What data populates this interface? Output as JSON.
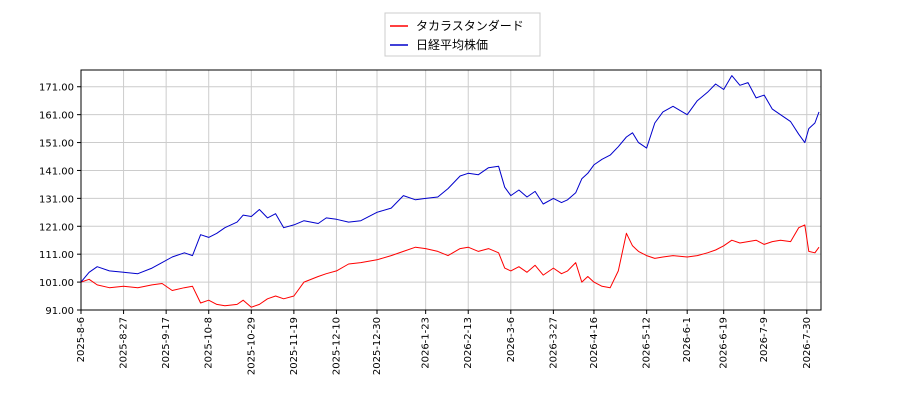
{
  "chart_data": {
    "type": "line",
    "title": "",
    "xlabel": "",
    "ylabel": "",
    "ylim": [
      91.0,
      177.0
    ],
    "yticks": [
      "91.00",
      "101.00",
      "111.00",
      "121.00",
      "131.00",
      "141.00",
      "151.00",
      "161.00",
      "171.00"
    ],
    "x_range": [
      "2025-08-06",
      "2026-08-06"
    ],
    "xticks": [
      "2025-8-6",
      "2025-8-27",
      "2025-9-17",
      "2025-10-8",
      "2025-10-29",
      "2025-11-19",
      "2025-12-10",
      "2025-12-30",
      "2026-1-23",
      "2026-2-13",
      "2026-3-6",
      "2026-3-27",
      "2026-4-16",
      "2026-5-12",
      "2026-6-1",
      "2026-6-19",
      "2026-7-9",
      "2026-7-30"
    ],
    "grid": true,
    "legend": "top-center",
    "series": [
      {
        "name": "タカラスタンダード",
        "color": "#ff0000",
        "points": [
          [
            "2025-08-06",
            101.0
          ],
          [
            "2025-08-10",
            102.0
          ],
          [
            "2025-08-14",
            100.0
          ],
          [
            "2025-08-20",
            99.0
          ],
          [
            "2025-08-27",
            99.5
          ],
          [
            "2025-09-03",
            99.0
          ],
          [
            "2025-09-10",
            100.0
          ],
          [
            "2025-09-15",
            100.5
          ],
          [
            "2025-09-20",
            98.0
          ],
          [
            "2025-09-26",
            99.0
          ],
          [
            "2025-09-30",
            99.5
          ],
          [
            "2025-10-04",
            93.5
          ],
          [
            "2025-10-08",
            94.5
          ],
          [
            "2025-10-12",
            93.0
          ],
          [
            "2025-10-16",
            92.5
          ],
          [
            "2025-10-22",
            93.0
          ],
          [
            "2025-10-25",
            94.5
          ],
          [
            "2025-10-29",
            92.0
          ],
          [
            "2025-11-02",
            93.0
          ],
          [
            "2025-11-06",
            95.0
          ],
          [
            "2025-11-10",
            96.0
          ],
          [
            "2025-11-14",
            95.0
          ],
          [
            "2025-11-19",
            96.0
          ],
          [
            "2025-11-24",
            101.0
          ],
          [
            "2025-12-01",
            103.0
          ],
          [
            "2025-12-05",
            104.0
          ],
          [
            "2025-12-10",
            105.0
          ],
          [
            "2025-12-16",
            107.5
          ],
          [
            "2025-12-22",
            108.0
          ],
          [
            "2025-12-30",
            109.0
          ],
          [
            "2026-01-06",
            110.5
          ],
          [
            "2026-01-12",
            112.0
          ],
          [
            "2026-01-18",
            113.5
          ],
          [
            "2026-01-23",
            113.0
          ],
          [
            "2026-01-29",
            112.0
          ],
          [
            "2026-02-03",
            110.5
          ],
          [
            "2026-02-09",
            113.0
          ],
          [
            "2026-02-13",
            113.5
          ],
          [
            "2026-02-18",
            112.0
          ],
          [
            "2026-02-23",
            113.0
          ],
          [
            "2026-02-28",
            111.5
          ],
          [
            "2026-03-03",
            106.0
          ],
          [
            "2026-03-06",
            105.0
          ],
          [
            "2026-03-10",
            106.5
          ],
          [
            "2026-03-14",
            104.5
          ],
          [
            "2026-03-18",
            107.0
          ],
          [
            "2026-03-22",
            103.5
          ],
          [
            "2026-03-27",
            106.0
          ],
          [
            "2026-03-31",
            104.0
          ],
          [
            "2026-04-03",
            105.0
          ],
          [
            "2026-04-07",
            108.0
          ],
          [
            "2026-04-10",
            101.0
          ],
          [
            "2026-04-13",
            103.0
          ],
          [
            "2026-04-16",
            101.0
          ],
          [
            "2026-04-20",
            99.5
          ],
          [
            "2026-04-24",
            99.0
          ],
          [
            "2026-04-28",
            105.0
          ],
          [
            "2026-05-02",
            118.5
          ],
          [
            "2026-05-05",
            114.0
          ],
          [
            "2026-05-08",
            112.0
          ],
          [
            "2026-05-12",
            110.5
          ],
          [
            "2026-05-16",
            109.5
          ],
          [
            "2026-05-20",
            110.0
          ],
          [
            "2026-05-25",
            110.5
          ],
          [
            "2026-06-01",
            110.0
          ],
          [
            "2026-06-06",
            110.5
          ],
          [
            "2026-06-11",
            111.5
          ],
          [
            "2026-06-15",
            112.5
          ],
          [
            "2026-06-19",
            114.0
          ],
          [
            "2026-06-23",
            116.0
          ],
          [
            "2026-06-27",
            115.0
          ],
          [
            "2026-07-01",
            115.5
          ],
          [
            "2026-07-05",
            116.0
          ],
          [
            "2026-07-09",
            114.5
          ],
          [
            "2026-07-13",
            115.5
          ],
          [
            "2026-07-17",
            116.0
          ],
          [
            "2026-07-22",
            115.5
          ],
          [
            "2026-07-26",
            120.5
          ],
          [
            "2026-07-29",
            121.5
          ],
          [
            "2026-07-31",
            112.0
          ],
          [
            "2026-08-03",
            111.5
          ],
          [
            "2026-08-05",
            113.5
          ]
        ]
      },
      {
        "name": "日経平均株価",
        "color": "#0000cc",
        "points": [
          [
            "2025-08-06",
            101.0
          ],
          [
            "2025-08-10",
            104.5
          ],
          [
            "2025-08-14",
            106.5
          ],
          [
            "2025-08-20",
            105.0
          ],
          [
            "2025-08-27",
            104.5
          ],
          [
            "2025-09-03",
            104.0
          ],
          [
            "2025-09-10",
            106.0
          ],
          [
            "2025-09-15",
            108.0
          ],
          [
            "2025-09-20",
            110.0
          ],
          [
            "2025-09-26",
            111.5
          ],
          [
            "2025-09-30",
            110.5
          ],
          [
            "2025-10-04",
            118.0
          ],
          [
            "2025-10-08",
            117.0
          ],
          [
            "2025-10-12",
            118.5
          ],
          [
            "2025-10-16",
            120.5
          ],
          [
            "2025-10-22",
            122.5
          ],
          [
            "2025-10-25",
            125.0
          ],
          [
            "2025-10-29",
            124.5
          ],
          [
            "2025-11-02",
            127.0
          ],
          [
            "2025-11-06",
            124.0
          ],
          [
            "2025-11-10",
            125.5
          ],
          [
            "2025-11-14",
            120.5
          ],
          [
            "2025-11-19",
            121.5
          ],
          [
            "2025-11-24",
            123.0
          ],
          [
            "2025-12-01",
            122.0
          ],
          [
            "2025-12-05",
            124.0
          ],
          [
            "2025-12-10",
            123.5
          ],
          [
            "2025-12-16",
            122.5
          ],
          [
            "2025-12-22",
            123.0
          ],
          [
            "2025-12-30",
            126.0
          ],
          [
            "2026-01-06",
            127.5
          ],
          [
            "2026-01-12",
            132.0
          ],
          [
            "2026-01-18",
            130.5
          ],
          [
            "2026-01-23",
            131.0
          ],
          [
            "2026-01-29",
            131.5
          ],
          [
            "2026-02-03",
            134.5
          ],
          [
            "2026-02-09",
            139.0
          ],
          [
            "2026-02-13",
            140.0
          ],
          [
            "2026-02-18",
            139.5
          ],
          [
            "2026-02-23",
            142.0
          ],
          [
            "2026-02-28",
            142.5
          ],
          [
            "2026-03-03",
            135.0
          ],
          [
            "2026-03-06",
            132.0
          ],
          [
            "2026-03-10",
            134.0
          ],
          [
            "2026-03-14",
            131.5
          ],
          [
            "2026-03-18",
            133.5
          ],
          [
            "2026-03-22",
            129.0
          ],
          [
            "2026-03-27",
            131.0
          ],
          [
            "2026-03-31",
            129.5
          ],
          [
            "2026-04-03",
            130.5
          ],
          [
            "2026-04-07",
            133.0
          ],
          [
            "2026-04-10",
            138.0
          ],
          [
            "2026-04-13",
            140.0
          ],
          [
            "2026-04-16",
            143.0
          ],
          [
            "2026-04-20",
            145.0
          ],
          [
            "2026-04-24",
            146.5
          ],
          [
            "2026-04-28",
            149.5
          ],
          [
            "2026-05-02",
            153.0
          ],
          [
            "2026-05-05",
            154.5
          ],
          [
            "2026-05-08",
            151.0
          ],
          [
            "2026-05-12",
            149.0
          ],
          [
            "2026-05-16",
            158.0
          ],
          [
            "2026-05-20",
            162.0
          ],
          [
            "2026-05-25",
            164.0
          ],
          [
            "2026-06-01",
            161.0
          ],
          [
            "2026-06-06",
            166.0
          ],
          [
            "2026-06-11",
            169.0
          ],
          [
            "2026-06-15",
            172.0
          ],
          [
            "2026-06-19",
            170.0
          ],
          [
            "2026-06-23",
            175.0
          ],
          [
            "2026-06-27",
            171.5
          ],
          [
            "2026-07-01",
            172.5
          ],
          [
            "2026-07-05",
            167.0
          ],
          [
            "2026-07-09",
            168.0
          ],
          [
            "2026-07-13",
            163.0
          ],
          [
            "2026-07-17",
            161.0
          ],
          [
            "2026-07-22",
            158.5
          ],
          [
            "2026-07-26",
            154.0
          ],
          [
            "2026-07-29",
            151.0
          ],
          [
            "2026-07-31",
            156.0
          ],
          [
            "2026-08-03",
            158.0
          ],
          [
            "2026-08-05",
            162.0
          ]
        ]
      }
    ]
  }
}
